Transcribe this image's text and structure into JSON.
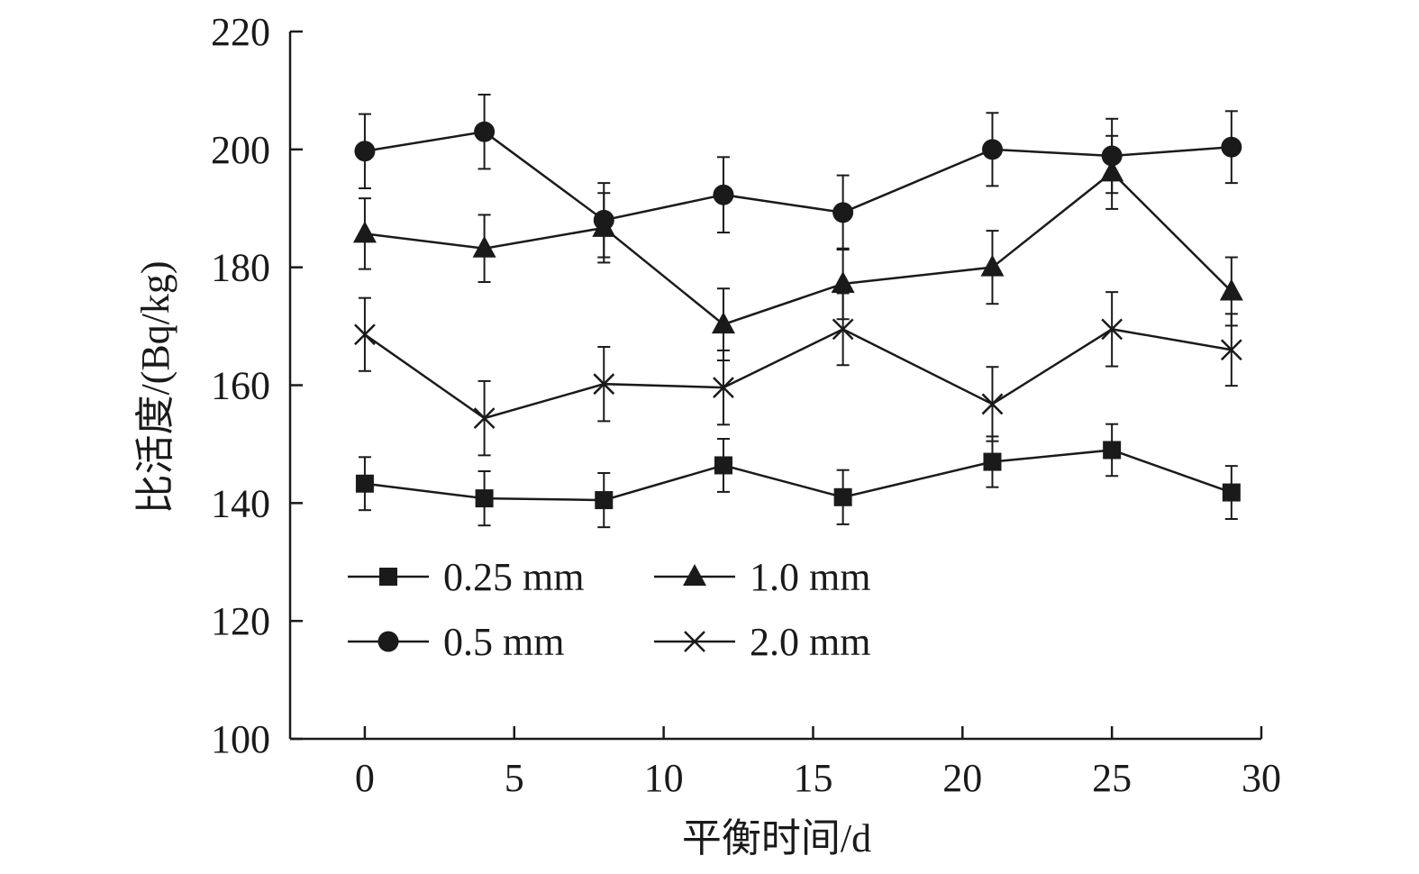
{
  "chart_data": {
    "type": "line",
    "xlabel": "平衡时间/d",
    "ylabel": "比活度/(Bq/kg)",
    "xlim": [
      -2.5,
      30
    ],
    "ylim": [
      100,
      220
    ],
    "x_ticks": [
      0,
      5,
      10,
      15,
      20,
      25,
      30
    ],
    "y_ticks": [
      100,
      120,
      140,
      160,
      180,
      200,
      220
    ],
    "x_tick_labels": [
      "0",
      "5",
      "10",
      "15",
      "20",
      "25",
      "30"
    ],
    "y_tick_labels": [
      "100",
      "120",
      "140",
      "160",
      "180",
      "200",
      "220"
    ],
    "x": [
      0,
      4,
      8,
      12,
      16,
      21,
      25,
      29
    ],
    "grid": false,
    "legend_position": "lower-left",
    "series": [
      {
        "name": "0.25 mm",
        "marker": "square",
        "values": [
          143.3,
          140.8,
          140.5,
          146.4,
          141.0,
          147.0,
          149.0,
          141.8
        ],
        "errors": [
          4.5,
          4.6,
          4.6,
          4.5,
          4.6,
          4.3,
          4.4,
          4.5
        ]
      },
      {
        "name": "0.5 mm",
        "marker": "circle",
        "values": [
          199.7,
          203.0,
          188.0,
          192.3,
          189.3,
          200.0,
          198.9,
          200.4
        ],
        "errors": [
          6.3,
          6.3,
          6.3,
          6.4,
          6.3,
          6.2,
          6.3,
          6.1
        ]
      },
      {
        "name": "1.0 mm",
        "marker": "triangle",
        "values": [
          185.7,
          183.2,
          186.7,
          170.3,
          177.2,
          180.0,
          196.1,
          175.9
        ],
        "errors": [
          6.0,
          5.7,
          5.9,
          6.1,
          6.0,
          6.2,
          6.2,
          5.8
        ]
      },
      {
        "name": "2.0 mm",
        "marker": "x",
        "values": [
          168.6,
          154.4,
          160.2,
          159.6,
          169.5,
          156.8,
          169.5,
          166.0
        ],
        "errors": [
          6.2,
          6.3,
          6.3,
          6.3,
          6.1,
          6.3,
          6.3,
          6.1
        ]
      }
    ],
    "colors": {
      "line": "#1a1a1a",
      "marker": "#1a1a1a",
      "background": "#ffffff"
    }
  }
}
